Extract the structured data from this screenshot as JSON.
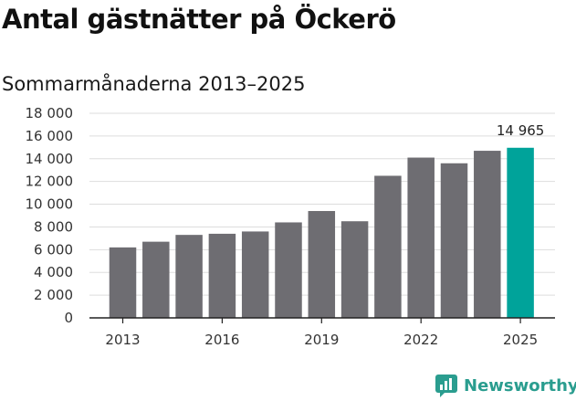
{
  "header": {
    "title": "Antal gästnätter på Öckerö",
    "subtitle": "Sommarmånaderna 2013–2025"
  },
  "brand": {
    "name": "Newsworthy",
    "color": "#2a9d8f",
    "icon": "newsworthy-logo-icon"
  },
  "chart_data": {
    "type": "bar",
    "categories": [
      "2013",
      "2014",
      "2015",
      "2016",
      "2017",
      "2018",
      "2019",
      "2020",
      "2021",
      "2022",
      "2023",
      "2024",
      "2025"
    ],
    "values": [
      6200,
      6700,
      7300,
      7400,
      7600,
      8400,
      9400,
      8500,
      12500,
      14100,
      13600,
      14700,
      14965
    ],
    "ylim": [
      0,
      18000
    ],
    "yticks": [
      0,
      2000,
      4000,
      6000,
      8000,
      10000,
      12000,
      14000,
      16000,
      18000
    ],
    "ytick_labels": [
      "0",
      "2 000",
      "4 000",
      "6 000",
      "8 000",
      "10 000",
      "12 000",
      "14 000",
      "16 000",
      "18 000"
    ],
    "xticks": [
      "2013",
      "2016",
      "2019",
      "2022",
      "2025"
    ],
    "data_labels": [
      {
        "category": "2025",
        "text": "14 965"
      }
    ],
    "highlight_category": "2025",
    "colors": {
      "bar": "#6e6d72",
      "highlight": "#00a39a",
      "grid": "#dddddd",
      "axis": "#222222"
    },
    "grid": true,
    "xlabel": "",
    "ylabel": ""
  }
}
